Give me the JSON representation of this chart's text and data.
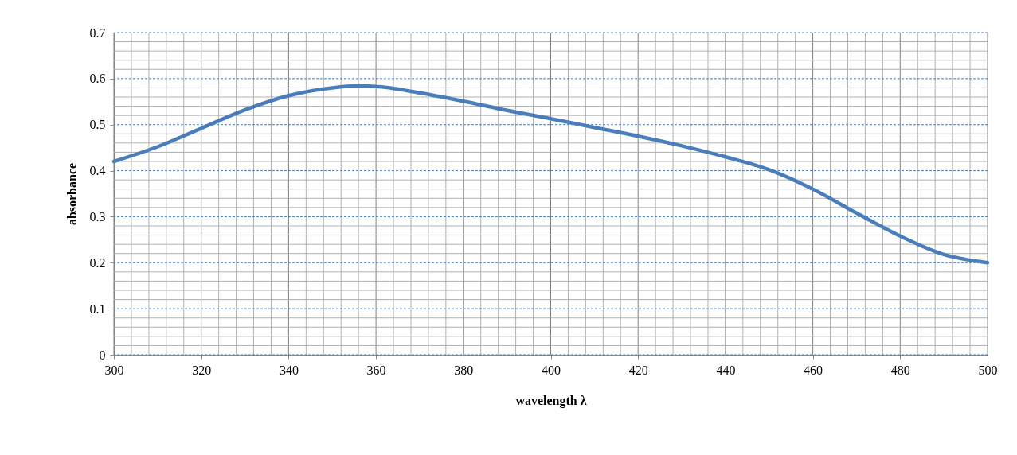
{
  "chart_data": {
    "type": "line",
    "xlabel": "wavelength λ",
    "ylabel": "absorbance",
    "x": [
      300,
      310,
      320,
      330,
      340,
      350,
      356,
      360,
      370,
      380,
      390,
      400,
      410,
      420,
      430,
      440,
      450,
      460,
      470,
      480,
      490,
      500
    ],
    "series": [
      {
        "color": "#4a7ebb",
        "values": [
          0.42,
          0.452,
          0.492,
          0.532,
          0.563,
          0.58,
          0.584,
          0.583,
          0.569,
          0.551,
          0.531,
          0.513,
          0.494,
          0.475,
          0.454,
          0.43,
          0.402,
          0.36,
          0.308,
          0.258,
          0.218,
          0.2
        ]
      }
    ],
    "xlim": [
      300,
      500
    ],
    "xticks": [
      300,
      320,
      340,
      360,
      380,
      400,
      420,
      440,
      460,
      480,
      500
    ],
    "ylim": [
      0,
      0.7
    ],
    "yticks": [
      0,
      0.1,
      0.2,
      0.3,
      0.4,
      0.5,
      0.6,
      0.7
    ],
    "grid": true,
    "marker": "none",
    "line_style": "solid"
  }
}
